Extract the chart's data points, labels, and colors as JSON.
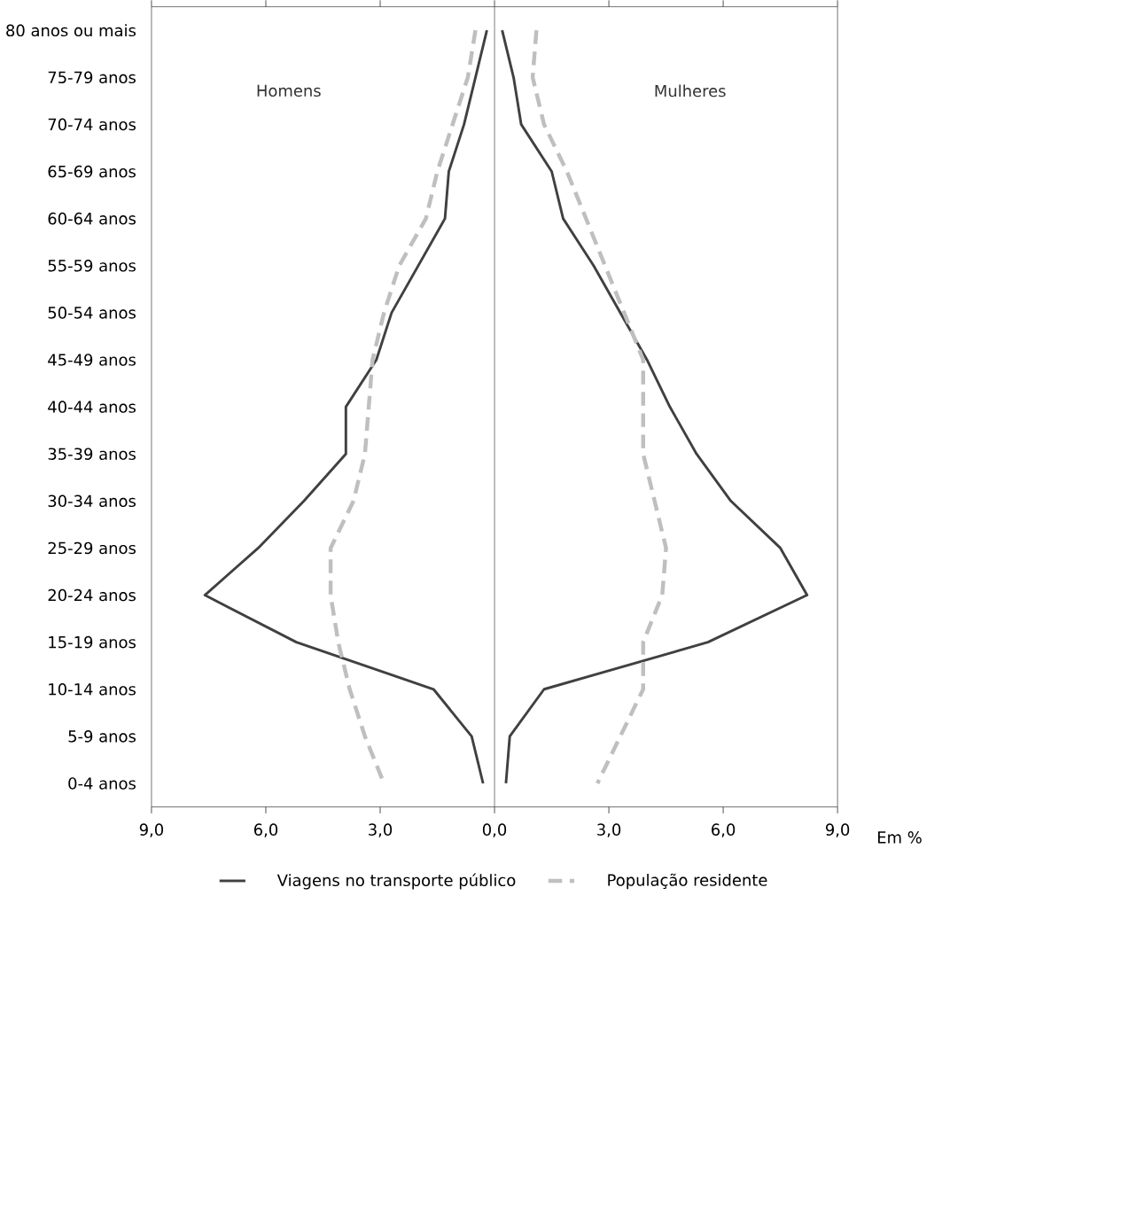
{
  "chart_data": {
    "type": "line",
    "orientation": "horizontal",
    "xlabel": "Em %",
    "categories": [
      "80 anos ou mais",
      "75-79 anos",
      "70-74 anos",
      "65-69 anos",
      "60-64 anos",
      "55-59 anos",
      "50-54 anos",
      "45-49 anos",
      "40-44 anos",
      "35-39 anos",
      "30-34 anos",
      "25-29 anos",
      "20-24 anos",
      "15-19 anos",
      "10-14 anos",
      "5-9 anos",
      "0-4 anos"
    ],
    "series": [
      {
        "name": "Viagens no transporte público",
        "color": "#404040",
        "line_style": "solid",
        "values": [
          -0.2,
          -0.5,
          -0.8,
          -1.2,
          -1.3,
          -2.0,
          -2.7,
          -3.1,
          -3.9,
          -3.9,
          -5.0,
          -6.2,
          -7.6,
          -5.2,
          -1.6,
          -0.6,
          -0.3
        ]
      },
      {
        "name": "População residente",
        "color": "#bfbfbf",
        "line_style": "dashed",
        "values": [
          -0.5,
          -0.7,
          -1.1,
          -1.5,
          -1.8,
          -2.5,
          -2.9,
          -3.2,
          -3.3,
          -3.4,
          -3.7,
          -4.3,
          -4.3,
          -4.1,
          -3.8,
          -3.4,
          -2.9
        ]
      },
      {
        "color": "#404040",
        "line_style": "solid",
        "values": [
          0.2,
          0.5,
          0.7,
          1.5,
          1.8,
          2.6,
          3.3,
          4.0,
          4.6,
          5.3,
          6.2,
          7.5,
          8.2,
          5.6,
          1.3,
          0.4,
          0.3
        ]
      },
      {
        "color": "#bfbfbf",
        "line_style": "dashed",
        "values": [
          1.1,
          1.0,
          1.3,
          1.9,
          2.4,
          2.9,
          3.4,
          3.9,
          3.9,
          3.9,
          4.2,
          4.5,
          4.4,
          3.9,
          3.9,
          3.3,
          2.7
        ]
      }
    ],
    "xlim": [
      -9,
      9
    ],
    "xticks": [
      {
        "value": -9,
        "label": "9,0"
      },
      {
        "value": -6,
        "label": "6,0"
      },
      {
        "value": -3,
        "label": "3,0"
      },
      {
        "value": 0,
        "label": "0,0"
      },
      {
        "value": 3,
        "label": "3,0"
      },
      {
        "value": 6,
        "label": "6,0"
      },
      {
        "value": 9,
        "label": "9,0"
      }
    ],
    "ref_lines": [
      {
        "axis": "x",
        "value": 0,
        "color": "#404040"
      }
    ],
    "annotations": [
      "Homens",
      "Mulheres"
    ],
    "grid": false,
    "legend": "bottom",
    "marker": "none"
  }
}
